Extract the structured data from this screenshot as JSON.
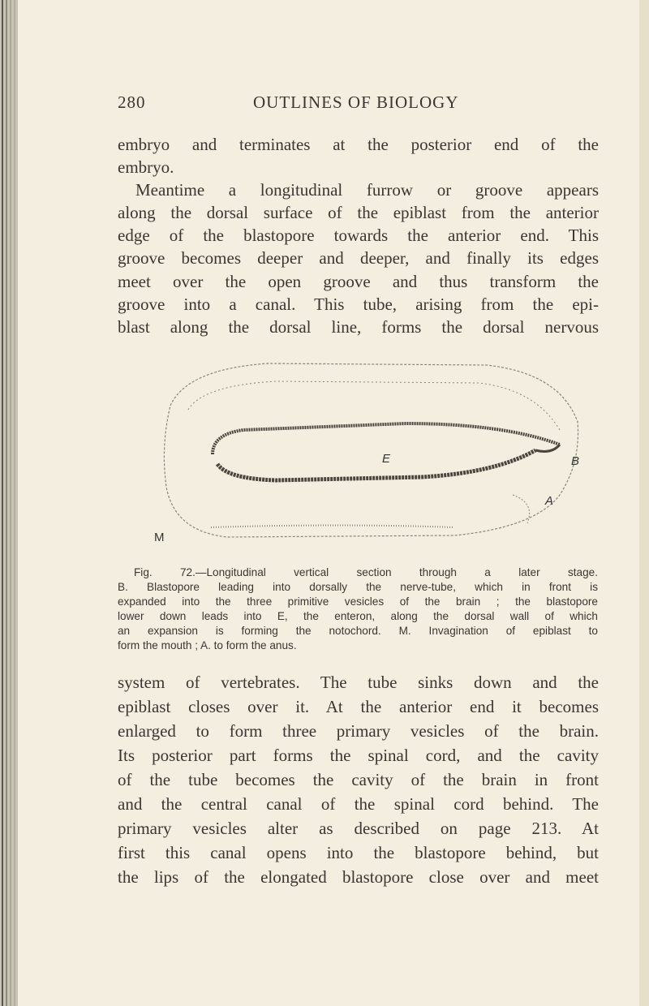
{
  "header": {
    "page_number": "280",
    "title": "OUTLINES OF BIOLOGY"
  },
  "body_top": {
    "lines": [
      "embryo and terminates at the posterior end of the",
      "embryo.",
      "Meantime a longitudinal furrow or groove appears",
      "along the dorsal surface of the epiblast from the anterior",
      "edge of the blastopore towards the anterior end. This",
      "groove becomes deeper and deeper, and finally its edges",
      "meet over the open groove and thus transform the",
      "groove into a canal. This tube, arising from the epi-",
      "blast along the dorsal line, forms the dorsal nervous"
    ]
  },
  "figure": {
    "labels": [
      "E",
      "B",
      "A",
      "M"
    ],
    "caption_lines": [
      "Fig. 72.—Longitudinal vertical section through a later stage.",
      "B. Blastopore leading into dorsally the nerve-tube, which in front is",
      "expanded into the three primitive vesicles of the brain ; the blastopore",
      "lower down leads into E, the enteron, along the dorsal wall of which",
      "an expansion is forming the notochord. M. Invagination of epiblast to",
      "form the mouth ; A. to form the anus."
    ]
  },
  "body_bottom": {
    "lines": [
      "system of vertebrates. The tube sinks down and the",
      "epiblast closes over it. At the anterior end it becomes",
      "enlarged to form three primary vesicles of the brain.",
      "Its posterior part forms the spinal cord, and the cavity",
      "of the tube becomes the cavity of the brain in front",
      "and the central canal of the spinal cord behind. The",
      "primary vesicles alter as described on page 213. At",
      "first this canal opens into the blastopore behind, but",
      "the lips of the elongated blastopore close over and meet"
    ]
  }
}
